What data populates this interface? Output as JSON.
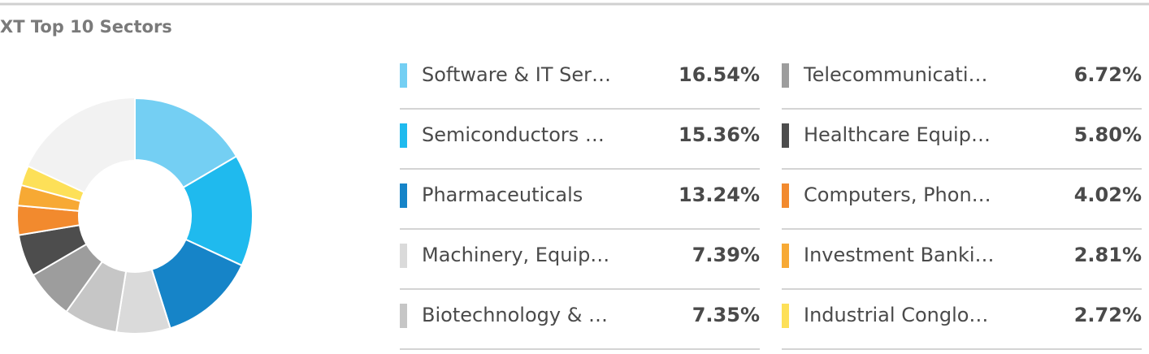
{
  "chart_data": {
    "type": "pie",
    "donut": true,
    "title": "XT Top 10 Sectors",
    "categories": [
      "Software & IT Ser…",
      "Semiconductors …",
      "Pharmaceuticals",
      "Machinery, Equip…",
      "Biotechnology & …",
      "Telecommunicati…",
      "Healthcare Equip…",
      "Computers, Phon…",
      "Investment Banki…",
      "Industrial Conglo…"
    ],
    "values": [
      16.54,
      15.36,
      13.24,
      7.39,
      7.35,
      6.72,
      5.8,
      4.02,
      2.81,
      2.72
    ],
    "value_labels": [
      "16.54%",
      "15.36%",
      "13.24%",
      "7.39%",
      "7.35%",
      "6.72%",
      "5.80%",
      "4.02%",
      "2.81%",
      "2.72%"
    ],
    "colors": [
      "#74cff3",
      "#1fbaee",
      "#1684c8",
      "#dadada",
      "#c6c6c6",
      "#9d9d9d",
      "#4d4d4d",
      "#f28a2e",
      "#f7a934",
      "#fde058"
    ]
  }
}
